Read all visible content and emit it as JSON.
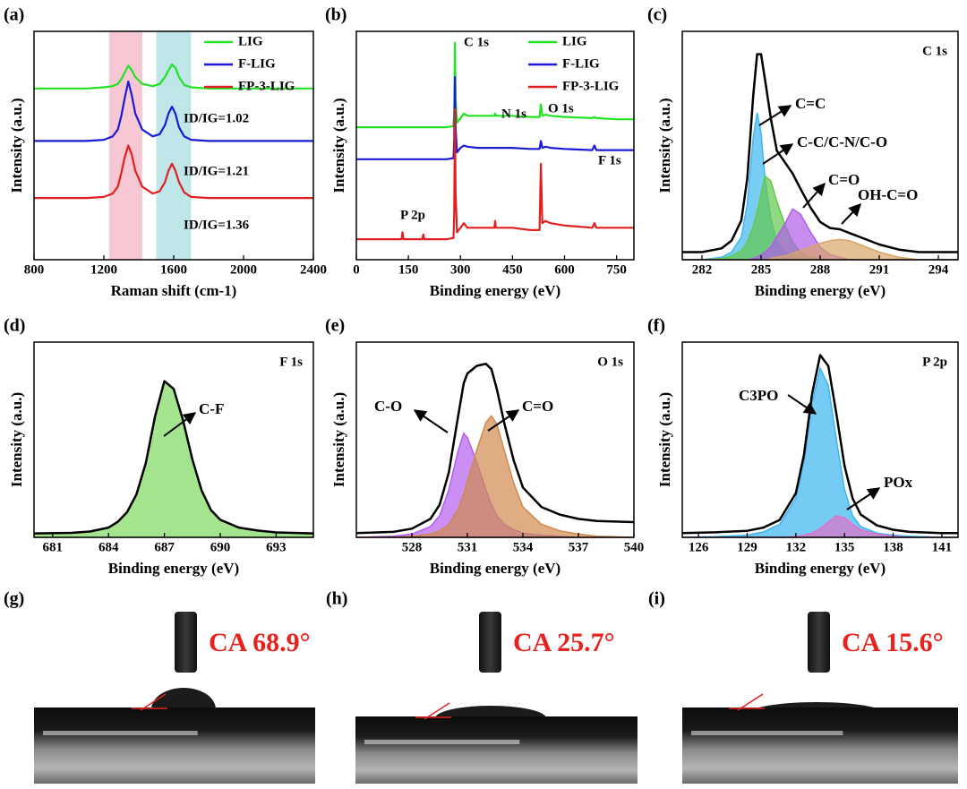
{
  "chart_data": [
    {
      "type": "line",
      "panel": "(a)",
      "xlabel": "Raman shift (cm-1)",
      "ylabel": "Intensity (a.u.)",
      "xlim": [
        800,
        2400
      ],
      "xticks": [
        800,
        1200,
        1600,
        2000,
        2400
      ],
      "ylim": [
        0,
        100
      ],
      "legend": "upper right",
      "bands": [
        {
          "from": 1230,
          "to": 1420,
          "color": "#f4b6c4"
        },
        {
          "from": 1500,
          "to": 1700,
          "color": "#a9dde0"
        }
      ],
      "x": [
        800,
        1000,
        1100,
        1200,
        1250,
        1280,
        1300,
        1320,
        1340,
        1360,
        1380,
        1420,
        1480,
        1520,
        1550,
        1570,
        1590,
        1610,
        1630,
        1660,
        1700,
        1800,
        2000,
        2200,
        2400
      ],
      "series": [
        {
          "name": "LIG",
          "color": "#22e322",
          "values": [
            75,
            75,
            75,
            75.5,
            76,
            77,
            79,
            82,
            85,
            83,
            80,
            77,
            76,
            77,
            80,
            83,
            85.5,
            84,
            80,
            76.5,
            75.5,
            75,
            75,
            75,
            75
          ]
        },
        {
          "name": "F-LIG",
          "color": "#1b1bd6",
          "values": [
            52,
            52,
            52,
            52.5,
            54,
            57,
            63,
            71,
            78,
            72,
            64,
            57,
            54,
            55,
            59,
            64,
            67,
            64,
            58,
            54,
            52.5,
            52,
            52,
            52,
            52
          ]
        },
        {
          "name": "FP-3-LIG",
          "color": "#e02020",
          "values": [
            27,
            27,
            27,
            27.5,
            29,
            32,
            38,
            45,
            50,
            46,
            39,
            32,
            29,
            30,
            34,
            39,
            42,
            39,
            34,
            29.5,
            27.5,
            27,
            27,
            27,
            27
          ]
        }
      ],
      "annotations": [
        "ID/IG=1.02",
        "ID/IG=1.21",
        "ID/IG=1.36"
      ]
    },
    {
      "type": "line",
      "panel": "(b)",
      "xlabel": "Binding energy (eV)",
      "ylabel": "Intensity (a.u.)",
      "xlim": [
        0,
        800
      ],
      "xticks": [
        0,
        150,
        300,
        450,
        600,
        750
      ],
      "ylim": [
        0,
        100
      ],
      "legend": "upper right",
      "x": [
        0,
        100,
        130,
        133,
        136,
        180,
        190,
        193,
        196,
        260,
        280,
        282,
        284,
        286,
        290,
        300,
        310,
        320,
        350,
        398,
        400,
        402,
        450,
        500,
        528,
        532,
        536,
        545,
        560,
        600,
        680,
        686,
        692,
        750,
        800
      ],
      "series": [
        {
          "name": "LIG",
          "color": "#22e322",
          "values": [
            58,
            58,
            58,
            58,
            58,
            58,
            58,
            58,
            58,
            58,
            58.5,
            65,
            95,
            70,
            60,
            62,
            64,
            63,
            63,
            63,
            64,
            63,
            63,
            62.5,
            62.5,
            68,
            63,
            63.5,
            63,
            62.5,
            62,
            62.5,
            62,
            61.5,
            61.5
          ]
        },
        {
          "name": "F-LIG",
          "color": "#1b1bd6",
          "values": [
            44,
            44,
            44,
            44,
            44,
            44,
            44,
            44,
            44,
            44,
            44.5,
            52,
            80,
            58,
            47,
            49,
            50,
            49.5,
            49,
            49,
            49,
            49,
            49,
            48.5,
            48.5,
            52,
            49,
            49.5,
            49,
            48.5,
            48,
            50,
            48,
            48,
            48
          ]
        },
        {
          "name": "FP-3-LIG",
          "color": "#e02020",
          "values": [
            9,
            9,
            9,
            12,
            9,
            9,
            9,
            11,
            9,
            9,
            9.5,
            20,
            66,
            30,
            12,
            14,
            16,
            14,
            14,
            14,
            17,
            14,
            14,
            13,
            13,
            42,
            16,
            17,
            16,
            15,
            14,
            16,
            14,
            14,
            14
          ]
        }
      ],
      "annotations": [
        "C 1s",
        "N 1s",
        "O 1s",
        "F 1s",
        "P 2p"
      ]
    },
    {
      "type": "line",
      "panel": "(c)",
      "xlabel": "Binding energy (eV)",
      "ylabel": "Intensity (a.u.)",
      "note": "C 1s",
      "xlim": [
        281,
        295
      ],
      "xticks": [
        282,
        285,
        288,
        291,
        294
      ],
      "ylim": [
        0,
        90
      ],
      "x": [
        281,
        282,
        283,
        283.5,
        284,
        284.3,
        284.6,
        284.8,
        285,
        285.2,
        285.5,
        285.8,
        286.2,
        286.6,
        287,
        287.5,
        288,
        288.5,
        289,
        289.5,
        290,
        291,
        292,
        293,
        294,
        295
      ],
      "series": [
        {
          "name": "C=C",
          "color": "#3fb8ef",
          "fill": true,
          "values": [
            0,
            0,
            1,
            3,
            9,
            22,
            48,
            58,
            50,
            32,
            16,
            7,
            3,
            1.5,
            0.5,
            0,
            0,
            0,
            0,
            0,
            0,
            0,
            0,
            0,
            0,
            0
          ]
        },
        {
          "name": "C-C/C-N/C-O",
          "color": "#63c94a",
          "fill": true,
          "values": [
            0,
            0,
            0.5,
            1.5,
            3.5,
            7,
            13,
            19,
            26,
            33,
            31,
            23,
            14,
            7,
            3,
            1.2,
            0.4,
            0,
            0,
            0,
            0,
            0,
            0,
            0,
            0,
            0
          ]
        },
        {
          "name": "C=O",
          "color": "#b05ce8",
          "fill": true,
          "values": [
            0,
            0,
            0,
            0,
            0,
            0,
            0.5,
            1,
            2,
            3,
            5,
            9,
            14,
            20,
            18,
            11,
            5,
            2,
            1,
            0,
            0,
            0,
            0,
            0,
            0,
            0
          ]
        },
        {
          "name": "OH-C=O",
          "color": "#d7a56a",
          "fill": true,
          "values": [
            0,
            0,
            0,
            0,
            0,
            0,
            0,
            0,
            0,
            0,
            0.5,
            1,
            1.5,
            2.5,
            3.5,
            5,
            6.5,
            7.5,
            8,
            7.5,
            6,
            3,
            1,
            0,
            0,
            0
          ]
        },
        {
          "color": "#000000",
          "values": [
            3,
            3,
            4.5,
            7.5,
            15.5,
            32,
            64.5,
            81,
            81,
            71,
            55.5,
            43,
            38.5,
            34,
            28,
            20.7,
            14.9,
            12.5,
            12,
            10.5,
            9,
            6,
            4,
            3,
            3,
            3
          ]
        }
      ]
    },
    {
      "type": "line",
      "panel": "(d)",
      "xlabel": "Binding energy (eV)",
      "ylabel": "Intensity (a.u.)",
      "note": "F 1s",
      "xlim": [
        680,
        695
      ],
      "xticks": [
        681,
        684,
        687,
        690,
        693
      ],
      "ylim": [
        0,
        100
      ],
      "x": [
        680,
        682,
        683,
        684,
        684.5,
        685,
        685.5,
        686,
        686.5,
        687,
        687.5,
        688,
        688.5,
        689,
        689.5,
        690,
        691,
        692,
        693,
        695
      ],
      "series": [
        {
          "name": "C-F",
          "color": "#7fd85e",
          "fill": true,
          "values": [
            2,
            2.3,
            3,
            5,
            8,
            13,
            22,
            38,
            62,
            80,
            76,
            60,
            40,
            24,
            14,
            9,
            5,
            3.5,
            2.5,
            2
          ]
        },
        {
          "color": "#000000",
          "values": [
            2,
            2.3,
            3,
            5,
            8,
            13,
            22,
            38,
            62,
            80,
            76,
            60,
            40,
            24,
            14,
            9,
            5,
            3.5,
            2.5,
            2
          ]
        }
      ]
    },
    {
      "type": "line",
      "panel": "(e)",
      "xlabel": "Binding energy (eV)",
      "ylabel": "Intensity (a.u.)",
      "note": "O 1s",
      "xlim": [
        525,
        540
      ],
      "xticks": [
        528,
        531,
        534,
        537,
        540
      ],
      "ylim": [
        0,
        90
      ],
      "x": [
        525,
        527,
        528,
        529,
        529.5,
        530,
        530.5,
        530.8,
        531,
        531.5,
        532,
        532.3,
        532.6,
        533,
        533.5,
        534,
        535,
        536,
        537,
        538,
        540
      ],
      "series": [
        {
          "name": "C-O",
          "color": "#b45ef0",
          "fill": true,
          "values": [
            0,
            0.5,
            1.5,
            5,
            10,
            22,
            40,
            48,
            46,
            35,
            22,
            15,
            10,
            6,
            3.5,
            2,
            1,
            0.5,
            0,
            0,
            0
          ]
        },
        {
          "name": "C=O",
          "color": "#d08a4e",
          "fill": true,
          "values": [
            0,
            0,
            0.5,
            1.5,
            3,
            6,
            13,
            20,
            26,
            40,
            53,
            56,
            52,
            40,
            25,
            14,
            6,
            3,
            1.5,
            0.5,
            0
          ]
        },
        {
          "color": "#000000",
          "values": [
            2,
            2.5,
            4,
            8.5,
            15,
            30,
            56,
            71,
            75.5,
            79,
            80,
            77.5,
            68,
            52.5,
            35.5,
            23,
            14,
            10.5,
            8.5,
            7.5,
            7
          ]
        }
      ]
    },
    {
      "type": "line",
      "panel": "(f)",
      "xlabel": "Binding energy (eV)",
      "ylabel": "Intensity (a.u.)",
      "note": "P 2p",
      "xlim": [
        125,
        142
      ],
      "xticks": [
        126,
        129,
        132,
        135,
        138,
        141
      ],
      "ylim": [
        0,
        90
      ],
      "x": [
        125,
        127,
        129,
        130,
        131,
        132,
        132.5,
        133,
        133.5,
        134,
        134.5,
        135,
        135.5,
        136,
        137,
        138,
        139,
        141,
        142
      ],
      "series": [
        {
          "name": "C3PO",
          "color": "#3bb5ef",
          "fill": true,
          "values": [
            0,
            0.3,
            1,
            2.5,
            6,
            18,
            35,
            62,
            78,
            70,
            45,
            22,
            10,
            5,
            2,
            1,
            0.5,
            0,
            0
          ]
        },
        {
          "name": "POx",
          "color": "#e070c8",
          "fill": true,
          "values": [
            0,
            0,
            0,
            0,
            0,
            0.3,
            1,
            2,
            4,
            7,
            10,
            9,
            6,
            3.5,
            1.5,
            0.5,
            0,
            0,
            0
          ]
        },
        {
          "color": "#000000",
          "values": [
            2,
            2.3,
            3,
            4.5,
            8,
            20.3,
            38,
            66,
            84,
            79,
            57,
            33,
            18,
            10.5,
            5.5,
            3.5,
            2.5,
            2,
            2
          ]
        }
      ]
    }
  ],
  "photos": [
    {
      "panel": "(g)",
      "caption": "CA 68.9°"
    },
    {
      "panel": "(h)",
      "caption": "CA 25.7°"
    },
    {
      "panel": "(i)",
      "caption": "CA 15.6°"
    }
  ]
}
